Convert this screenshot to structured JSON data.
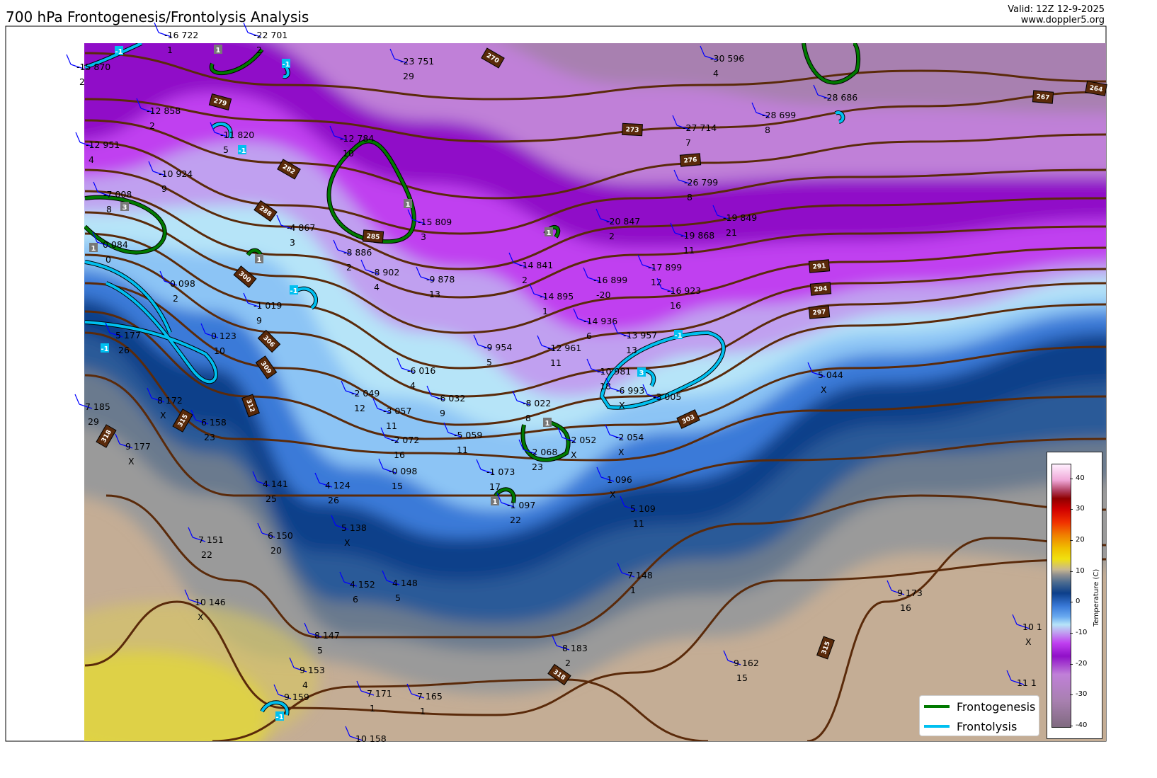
{
  "header": {
    "title": "700 hPa Frontogenesis/Frontolysis Analysis",
    "valid": "Valid: 12Z 12-9-2025",
    "site": "www.doppler5.org"
  },
  "colors": {
    "frontogenesis": "#007a00",
    "frontolysis": "#00c0f0",
    "height_contour": "#5a2a0a",
    "barb": "#0000ff"
  },
  "legend": {
    "items": [
      {
        "label": "Frontogenesis",
        "color": "#007a00"
      },
      {
        "label": "Frontolysis",
        "color": "#00c0f0"
      }
    ]
  },
  "colorbar": {
    "label": "Temperature (C)",
    "ticks": [
      "40",
      "30",
      "20",
      "10",
      "0",
      "-10",
      "-20",
      "-30",
      "-40"
    ],
    "range": [
      -40,
      45
    ]
  },
  "contour_labels": [
    "270",
    "264",
    "267",
    "273",
    "276",
    "279",
    "282",
    "285",
    "288",
    "291",
    "294",
    "297",
    "300",
    "303",
    "306",
    "309",
    "312",
    "315",
    "318",
    "315",
    "318"
  ],
  "front_labels": [
    "1",
    "-1",
    "1",
    "-1",
    "-1",
    "3",
    "1",
    "1",
    "1",
    "-1",
    "-1",
    "-1",
    "3",
    "1",
    "1",
    "-1"
  ],
  "stations": [
    {
      "top": "-16 722",
      "bottom": "1"
    },
    {
      "top": "-22 701",
      "bottom": "2"
    },
    {
      "top": "-15 870",
      "bottom": "2"
    },
    {
      "top": "-23 751",
      "bottom": "29"
    },
    {
      "top": "-30 596",
      "bottom": "4"
    },
    {
      "top": "-12 858",
      "bottom": "2"
    },
    {
      "top": "-11 820",
      "bottom": "5"
    },
    {
      "top": "-12 784",
      "bottom": "10"
    },
    {
      "top": "-12 951",
      "bottom": "4"
    },
    {
      "top": "-28 686",
      "bottom": ""
    },
    {
      "top": "-28 699",
      "bottom": "8"
    },
    {
      "top": "-27 714",
      "bottom": "7"
    },
    {
      "top": "-10 924",
      "bottom": "9"
    },
    {
      "top": "-7 008",
      "bottom": "8"
    },
    {
      "top": "-4 867",
      "bottom": "3"
    },
    {
      "top": "-26 799",
      "bottom": "8"
    },
    {
      "top": "-15 809",
      "bottom": "3"
    },
    {
      "top": "-20 847",
      "bottom": "2"
    },
    {
      "top": "-19 849",
      "bottom": "21"
    },
    {
      "top": "-19 868",
      "bottom": "11"
    },
    {
      "top": "0 084",
      "bottom": "0"
    },
    {
      "top": "-8 886",
      "bottom": "2"
    },
    {
      "top": "-8 902",
      "bottom": "4"
    },
    {
      "top": "-9 878",
      "bottom": "13"
    },
    {
      "top": "-14 841",
      "bottom": "2"
    },
    {
      "top": "-17 899",
      "bottom": "12"
    },
    {
      "top": "-16 899",
      "bottom": "-20"
    },
    {
      "top": "-14 895",
      "bottom": "1"
    },
    {
      "top": "-16 923",
      "bottom": "16"
    },
    {
      "top": "0 098",
      "bottom": "2"
    },
    {
      "top": "-1 019",
      "bottom": "9"
    },
    {
      "top": "-14 936",
      "bottom": "6"
    },
    {
      "top": "0 123",
      "bottom": "10"
    },
    {
      "top": "5 177",
      "bottom": "26"
    },
    {
      "top": "-13 957",
      "bottom": "13"
    },
    {
      "top": "-9 954",
      "bottom": "5"
    },
    {
      "top": "-12 961",
      "bottom": "11"
    },
    {
      "top": "-10 981",
      "bottom": "18"
    },
    {
      "top": "-6 016",
      "bottom": "4"
    },
    {
      "top": "-6 993",
      "bottom": "X"
    },
    {
      "top": "-3 005",
      "bottom": ""
    },
    {
      "top": "-2 049",
      "bottom": "12"
    },
    {
      "top": "-6 032",
      "bottom": "9"
    },
    {
      "top": "-8 022",
      "bottom": "8"
    },
    {
      "top": "8 172",
      "bottom": "X"
    },
    {
      "top": "7 185",
      "bottom": "29"
    },
    {
      "top": "-3 057",
      "bottom": "11"
    },
    {
      "top": "6 158",
      "bottom": "23"
    },
    {
      "top": "-2 072",
      "bottom": "16"
    },
    {
      "top": "-5 059",
      "bottom": "11"
    },
    {
      "top": "9 177",
      "bottom": "X"
    },
    {
      "top": "-2 052",
      "bottom": "X"
    },
    {
      "top": "-2 068",
      "bottom": "23"
    },
    {
      "top": "-2 054",
      "bottom": "X"
    },
    {
      "top": "5 044",
      "bottom": "X"
    },
    {
      "top": "-0 098",
      "bottom": "15"
    },
    {
      "top": "-1 073",
      "bottom": "17"
    },
    {
      "top": "4 141",
      "bottom": "25"
    },
    {
      "top": "4 124",
      "bottom": "26"
    },
    {
      "top": "1 096",
      "bottom": "X"
    },
    {
      "top": "-1 097",
      "bottom": "22"
    },
    {
      "top": "5 109",
      "bottom": "11"
    },
    {
      "top": "5 138",
      "bottom": "X"
    },
    {
      "top": "6 150",
      "bottom": "20"
    },
    {
      "top": "7 151",
      "bottom": "22"
    },
    {
      "top": "7 148",
      "bottom": "1"
    },
    {
      "top": "4 152",
      "bottom": "6"
    },
    {
      "top": "4 148",
      "bottom": "5"
    },
    {
      "top": "10 146",
      "bottom": "X"
    },
    {
      "top": "9 173",
      "bottom": "16"
    },
    {
      "top": "8 147",
      "bottom": "5"
    },
    {
      "top": "8 183",
      "bottom": "2"
    },
    {
      "top": "9 153",
      "bottom": "4"
    },
    {
      "top": "9 162",
      "bottom": "15"
    },
    {
      "top": "9 159",
      "bottom": ""
    },
    {
      "top": "7 171",
      "bottom": "1"
    },
    {
      "top": "7 165",
      "bottom": "1"
    },
    {
      "top": "10 158",
      "bottom": ""
    },
    {
      "top": "10 1",
      "bottom": "X"
    },
    {
      "top": "11 1",
      "bottom": ""
    }
  ]
}
